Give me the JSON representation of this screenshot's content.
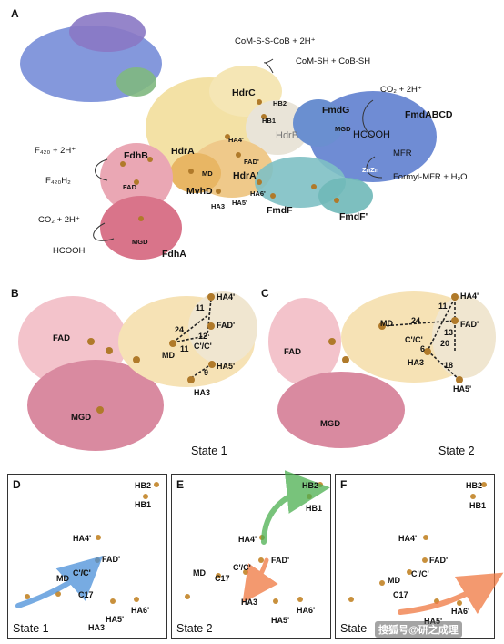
{
  "panelA": {
    "letter": "A",
    "reaction_top": "CoM-S-S-CoB + 2H⁺",
    "reaction_top2": "CoM-SH + CoB-SH",
    "co2_right": "CO₂ + 2H⁺",
    "hcooh_right": "HCOOH",
    "mfr": "MFR",
    "formyl": "Formyl-MFR + H₂O",
    "f420": "F₄₂₀ + 2H⁺",
    "f420h2": "F₄₂₀H₂",
    "co2_left": "CO₂ + 2H⁺",
    "hcooh_left": "HCOOH",
    "subunits": {
      "HdrC": "HdrC",
      "HdrA": "HdrA",
      "HdrB": "HdrB",
      "HdrAp": "HdrA'",
      "MvhD": "MvhD",
      "FdhB": "FdhB",
      "FdhA": "FdhA",
      "FmdG": "FmdG",
      "FmdABCD": "FmdABCD",
      "FmdF": "FmdF",
      "FmdFp": "FmdF'"
    },
    "sites": {
      "HB2": "HB2",
      "HB1": "HB1",
      "HA4p": "HA4'",
      "FADp": "FAD'",
      "MD": "MD",
      "HA6p": "HA6'",
      "HA3": "HA3",
      "HA5p": "HA5'",
      "FAD": "FAD",
      "MGD": "MGD",
      "MGD2": "MGD",
      "ZnZn": "ZnZn"
    }
  },
  "panelB": {
    "letter": "B",
    "state": "State 1",
    "labels": {
      "FAD": "FAD",
      "MGD": "MGD",
      "MD": "MD",
      "HA4p": "HA4'",
      "FADp": "FAD'",
      "CpCp": "C'/C'",
      "HA5p": "HA5'",
      "HA3": "HA3"
    },
    "distances": [
      "11",
      "24",
      "12",
      "11",
      "9"
    ]
  },
  "panelC": {
    "letter": "C",
    "state": "State 2",
    "labels": {
      "FAD": "FAD",
      "MGD": "MGD",
      "MD": "MD",
      "HA4p": "HA4'",
      "FADp": "FAD'",
      "CpCp": "C'/C'",
      "HA3": "HA3",
      "HA5p": "HA5'"
    },
    "distances": [
      "11",
      "24",
      "13",
      "6",
      "20",
      "18"
    ]
  },
  "panelD": {
    "letter": "D",
    "state": "State 1",
    "labels": {
      "HB2": "HB2",
      "HB1": "HB1",
      "HA4p": "HA4'",
      "FADp": "FAD'",
      "MD": "MD",
      "CpCp": "C'/C'",
      "C17": "C17",
      "HA6p": "HA6'",
      "HA5p": "HA5'",
      "HA3": "HA3"
    }
  },
  "panelE": {
    "letter": "E",
    "state": "State 2",
    "labels": {
      "HB2": "HB2",
      "HB1": "HB1",
      "HA4p": "HA4'",
      "FADp": "FAD'",
      "MD": "MD",
      "CpCp": "C'/C'",
      "C17": "C17",
      "HA3": "HA3",
      "HA6p": "HA6'",
      "HA5p": "HA5'"
    }
  },
  "panelF": {
    "letter": "F",
    "state": "State",
    "labels": {
      "HB2": "HB2",
      "HB1": "HB1",
      "HA4p": "HA4'",
      "FADp": "FAD'",
      "MD": "MD",
      "CpCp": "C'/C'",
      "C17": "C17",
      "HA6p": "HA6'",
      "HA5p": "HA5'"
    }
  },
  "watermark": "搜狐号@研之成理",
  "colors": {
    "fdh_pink": "#e6a0ad",
    "fdh_dark": "#c9566e",
    "hdr_yellow": "#f2dfa0",
    "hdr_orange": "#e8b664",
    "fmd_blue": "#5f7fcf",
    "fmd_purple": "#7f6fbf",
    "fmd_teal": "#6fb8b8",
    "fmd_green": "#7fb87f",
    "arrow_blue": "#4a90d9",
    "arrow_green": "#4caf50",
    "arrow_orange": "#f07840"
  }
}
